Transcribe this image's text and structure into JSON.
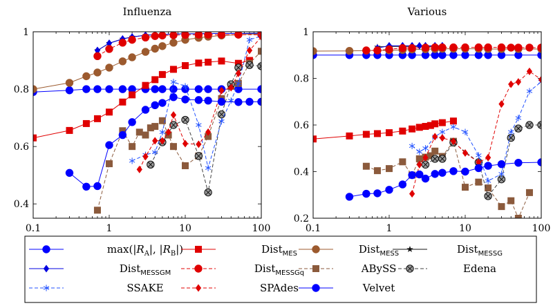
{
  "chart_data": [
    {
      "type": "line",
      "title": "Influenza",
      "xlabel": "",
      "ylabel": "",
      "xscale": "log",
      "xlim": [
        0.1,
        100
      ],
      "ylim": [
        0.35,
        1.0
      ],
      "xticks": [
        {
          "v": 0.1,
          "label": "0.1"
        },
        {
          "v": 1,
          "label": "1"
        },
        {
          "v": 10,
          "label": "10"
        },
        {
          "v": 100,
          "label": "100"
        }
      ],
      "yticks": [
        {
          "v": 0.4,
          "label": "0.4"
        },
        {
          "v": 0.6,
          "label": "0.6"
        },
        {
          "v": 0.8,
          "label": "0.8"
        },
        {
          "v": 1.0,
          "label": "1"
        }
      ],
      "grid": false,
      "series": [
        {
          "key": "maxr",
          "x": [
            0.1,
            0.3,
            0.5,
            0.7,
            1,
            1.5,
            2,
            3,
            4,
            5,
            7,
            10,
            15,
            20,
            30,
            50,
            100
          ],
          "y": [
            0.79,
            0.796,
            0.8,
            0.8,
            0.8,
            0.8,
            0.8,
            0.8,
            0.8,
            0.8,
            0.8,
            0.8,
            0.8,
            0.8,
            0.8,
            0.8,
            0.8
          ]
        },
        {
          "key": "mes",
          "x": [
            0.1,
            0.3,
            0.5,
            0.7,
            1,
            1.5,
            2,
            3,
            4,
            5,
            7,
            10,
            15,
            20,
            30,
            50,
            70
          ],
          "y": [
            0.63,
            0.656,
            0.68,
            0.697,
            0.72,
            0.755,
            0.78,
            0.813,
            0.833,
            0.851,
            0.869,
            0.882,
            0.891,
            0.894,
            0.898,
            0.89,
            0.9
          ]
        },
        {
          "key": "mess",
          "x": [
            0.1,
            0.3,
            0.5,
            0.7,
            1,
            1.5,
            2,
            3,
            4,
            5,
            7,
            10,
            15,
            20,
            30,
            50,
            100
          ],
          "y": [
            0.8,
            0.822,
            0.845,
            0.858,
            0.875,
            0.897,
            0.911,
            0.93,
            0.941,
            0.95,
            0.962,
            0.972,
            0.979,
            0.983,
            0.987,
            0.99,
            0.993
          ]
        },
        {
          "key": "messg",
          "x": [
            0.7,
            1,
            1.5,
            2,
            3,
            4,
            5,
            7,
            10,
            15,
            20,
            30,
            50,
            100
          ],
          "y": [
            0.935,
            0.96,
            0.975,
            0.982,
            0.988,
            0.99,
            0.991,
            0.992,
            0.993,
            0.993,
            0.994,
            0.994,
            0.994,
            0.995
          ]
        },
        {
          "key": "messgm",
          "x": [
            0.7,
            1,
            1.5,
            2,
            3,
            4,
            5,
            7,
            10,
            15,
            20,
            30,
            50,
            100
          ],
          "y": [
            0.935,
            0.96,
            0.975,
            0.982,
            0.988,
            0.99,
            0.991,
            0.992,
            0.993,
            0.993,
            0.994,
            0.994,
            0.994,
            0.995
          ]
        },
        {
          "key": "messgq",
          "x": [
            0.7,
            1,
            1.5,
            2,
            3,
            4,
            5,
            7,
            10,
            15,
            20,
            30,
            50,
            100
          ],
          "y": [
            0.915,
            0.94,
            0.962,
            0.972,
            0.98,
            0.985,
            0.987,
            0.988,
            0.989,
            0.99,
            0.99,
            0.99,
            0.99,
            0.99
          ]
        },
        {
          "key": "abyss",
          "x": [
            0.7,
            1,
            1.5,
            2,
            2.5,
            3,
            3.5,
            4,
            5,
            6,
            7,
            10,
            15,
            20,
            30,
            40,
            50,
            70,
            100
          ],
          "y": [
            0.378,
            0.54,
            0.655,
            0.6,
            0.65,
            0.64,
            0.665,
            0.67,
            0.69,
            0.64,
            0.6,
            0.533,
            0.567,
            0.635,
            0.767,
            0.81,
            0.82,
            0.89,
            0.932
          ]
        },
        {
          "key": "edena",
          "x": [
            3.5,
            5,
            7,
            10,
            15,
            20,
            30,
            40,
            50,
            70,
            100
          ],
          "y": [
            0.537,
            0.615,
            0.675,
            0.693,
            0.567,
            0.44,
            0.712,
            0.817,
            0.875,
            0.884,
            0.88
          ]
        },
        {
          "key": "ssake",
          "x": [
            2,
            3,
            4,
            5,
            7,
            10,
            15,
            20,
            30,
            40,
            50,
            70,
            100
          ],
          "y": [
            0.55,
            0.571,
            0.58,
            0.65,
            0.825,
            0.81,
            0.675,
            0.525,
            0.688,
            0.76,
            0.82,
            0.972,
            0.985
          ]
        },
        {
          "key": "spades",
          "x": [
            2.5,
            3,
            4,
            5,
            6,
            7,
            10,
            15,
            20,
            30,
            40,
            50,
            70,
            100
          ],
          "y": [
            0.52,
            0.565,
            0.62,
            0.62,
            0.65,
            0.71,
            0.61,
            0.608,
            0.65,
            0.795,
            0.805,
            0.855,
            0.935,
            0.982
          ]
        },
        {
          "key": "velvet",
          "x": [
            0.3,
            0.5,
            0.7,
            1,
            1.5,
            2,
            3,
            4,
            5,
            7,
            10,
            15,
            20,
            30,
            50,
            70,
            100
          ],
          "y": [
            0.508,
            0.46,
            0.462,
            0.605,
            0.64,
            0.685,
            0.728,
            0.744,
            0.752,
            0.772,
            0.764,
            0.762,
            0.76,
            0.756,
            0.755,
            0.756,
            0.756
          ]
        }
      ]
    },
    {
      "type": "line",
      "title": "Various",
      "xlabel": "",
      "ylabel": "",
      "xscale": "log",
      "xlim": [
        0.1,
        100
      ],
      "ylim": [
        0.2,
        1.0
      ],
      "xticks": [
        {
          "v": 0.1,
          "label": "0.1"
        },
        {
          "v": 1,
          "label": "1"
        },
        {
          "v": 10,
          "label": "10"
        },
        {
          "v": 100,
          "label": "100"
        }
      ],
      "yticks": [
        {
          "v": 0.2,
          "label": "0.2"
        },
        {
          "v": 0.4,
          "label": "0.4"
        },
        {
          "v": 0.6,
          "label": "0.6"
        },
        {
          "v": 0.8,
          "label": "0.8"
        },
        {
          "v": 1.0,
          "label": "1"
        }
      ],
      "grid": false,
      "series": [
        {
          "key": "maxr",
          "x": [
            0.1,
            0.3,
            0.5,
            0.7,
            1,
            1.5,
            2,
            3,
            4,
            5,
            7,
            10,
            15,
            20,
            30,
            50,
            100
          ],
          "y": [
            0.9,
            0.9,
            0.9,
            0.9,
            0.9,
            0.9,
            0.9,
            0.9,
            0.9,
            0.9,
            0.9,
            0.9,
            0.9,
            0.9,
            0.9,
            0.9,
            0.9
          ]
        },
        {
          "key": "mes",
          "x": [
            0.1,
            0.3,
            0.5,
            0.7,
            1,
            1.5,
            2,
            2.5,
            3,
            3.5,
            4,
            5,
            7
          ],
          "y": [
            0.54,
            0.553,
            0.56,
            0.563,
            0.567,
            0.574,
            0.583,
            0.59,
            0.594,
            0.598,
            0.605,
            0.61,
            0.617
          ]
        },
        {
          "key": "mess",
          "x": [
            0.1,
            0.3,
            0.5,
            0.7,
            1,
            1.5,
            2,
            3,
            4,
            5,
            7,
            10,
            15,
            20,
            30,
            50,
            100
          ],
          "y": [
            0.917,
            0.918,
            0.919,
            0.92,
            0.92,
            0.922,
            0.924,
            0.925,
            0.926,
            0.927,
            0.927,
            0.927,
            0.927,
            0.926,
            0.926,
            0.926,
            0.926
          ]
        },
        {
          "key": "messg",
          "x": [
            0.7,
            1,
            1.5,
            2,
            3,
            4,
            5
          ],
          "y": [
            0.935,
            0.937,
            0.937,
            0.937,
            0.937,
            0.937,
            0.937
          ]
        },
        {
          "key": "messgm",
          "x": [
            0.7,
            1,
            1.5,
            2,
            2.5,
            3,
            4,
            5
          ],
          "y": [
            0.93,
            0.94,
            0.94,
            0.94,
            0.94,
            0.94,
            0.94,
            0.94
          ]
        },
        {
          "key": "messgq",
          "x": [
            0.5,
            0.7,
            1,
            1.5,
            2,
            3,
            4,
            5,
            7,
            10,
            15,
            20,
            30,
            40,
            50,
            70,
            100
          ],
          "y": [
            0.92,
            0.92,
            0.925,
            0.93,
            0.93,
            0.932,
            0.933,
            0.933,
            0.933,
            0.933,
            0.933,
            0.933,
            0.933,
            0.932,
            0.932,
            0.932,
            0.932
          ]
        },
        {
          "key": "abyss",
          "x": [
            0.5,
            0.7,
            1,
            1.5,
            2,
            2.5,
            3,
            3.5,
            4,
            5,
            7,
            10,
            15,
            20,
            30,
            40,
            50,
            70
          ],
          "y": [
            0.423,
            0.404,
            0.413,
            0.442,
            0.385,
            0.455,
            0.462,
            0.468,
            0.488,
            0.465,
            0.53,
            0.333,
            0.355,
            0.33,
            0.25,
            0.275,
            0.2,
            0.31
          ]
        },
        {
          "key": "edena",
          "x": [
            3,
            4,
            5,
            7,
            15,
            20,
            30,
            40,
            50,
            70,
            100
          ],
          "y": [
            0.43,
            0.455,
            0.455,
            0.525,
            0.44,
            0.295,
            0.367,
            0.545,
            0.585,
            0.6,
            0.6
          ]
        },
        {
          "key": "ssake",
          "x": [
            2,
            2.5,
            3,
            4,
            5,
            7,
            10,
            15,
            20,
            30,
            40,
            50,
            70,
            100
          ],
          "y": [
            0.51,
            0.485,
            0.5,
            0.55,
            0.57,
            0.592,
            0.57,
            0.47,
            0.36,
            0.39,
            0.57,
            0.63,
            0.745,
            0.785
          ]
        },
        {
          "key": "spades",
          "x": [
            2,
            2.5,
            3,
            4,
            5,
            7,
            10,
            15,
            20,
            30,
            40,
            50,
            70,
            100
          ],
          "y": [
            0.305,
            0.43,
            0.46,
            0.55,
            0.545,
            0.53,
            0.48,
            0.44,
            0.46,
            0.69,
            0.775,
            0.785,
            0.83,
            0.795
          ]
        },
        {
          "key": "velvet",
          "x": [
            0.3,
            0.5,
            0.7,
            1,
            1.5,
            2,
            2.5,
            3,
            4,
            5,
            7,
            10,
            15,
            20,
            30,
            50,
            100
          ],
          "y": [
            0.292,
            0.305,
            0.307,
            0.322,
            0.345,
            0.385,
            0.388,
            0.37,
            0.39,
            0.395,
            0.402,
            0.4,
            0.415,
            0.425,
            0.432,
            0.438,
            0.44
          ]
        }
      ]
    }
  ],
  "legend": {
    "entries": [
      {
        "key": "maxr",
        "main": "max(|R",
        "sub": "",
        "text": "max(|RA|, |RB|)",
        "parts": [
          "max(|",
          "R",
          "A",
          "|, |",
          "R",
          "B",
          "|)"
        ]
      },
      {
        "key": "mes",
        "main": "Dist",
        "sub": "MES"
      },
      {
        "key": "mess",
        "main": "Dist",
        "sub": "MESS"
      },
      {
        "key": "messg",
        "main": "Dist",
        "sub": "MESSG"
      },
      {
        "key": "messgm",
        "main": "Dist",
        "sub": "MESSGM"
      },
      {
        "key": "messgq",
        "main": "Dist",
        "sub": "MESSGq"
      },
      {
        "key": "abyss",
        "main": "ABySS",
        "sub": ""
      },
      {
        "key": "edena",
        "main": "Edena",
        "sub": ""
      },
      {
        "key": "ssake",
        "main": "SSAKE",
        "sub": ""
      },
      {
        "key": "spades",
        "main": "SPAdes",
        "sub": ""
      },
      {
        "key": "velvet",
        "main": "Velvet",
        "sub": ""
      }
    ]
  },
  "styles": {
    "maxr": {
      "color": "#0000ff",
      "marker": "circle",
      "dash": ""
    },
    "mes": {
      "color": "#e00000",
      "marker": "square",
      "dash": ""
    },
    "mess": {
      "color": "#9c5a2e",
      "marker": "circle",
      "dash": ""
    },
    "messg": {
      "color": "#111111",
      "marker": "star",
      "dash": ""
    },
    "messgm": {
      "color": "#0000e0",
      "marker": "diamond",
      "dash": ""
    },
    "messgq": {
      "color": "#e00000",
      "marker": "circle",
      "dash": "5,3"
    },
    "abyss": {
      "color": "#8b5a3c",
      "marker": "square",
      "dash": "5,3"
    },
    "edena": {
      "color": "#404040",
      "marker": "otimes",
      "dash": "5,3"
    },
    "ssake": {
      "color": "#2050ff",
      "marker": "asterisk",
      "dash": "5,3"
    },
    "spades": {
      "color": "#e00000",
      "marker": "diamond",
      "dash": "5,3"
    },
    "velvet": {
      "color": "#0000ff",
      "marker": "circle",
      "dash": ""
    }
  }
}
